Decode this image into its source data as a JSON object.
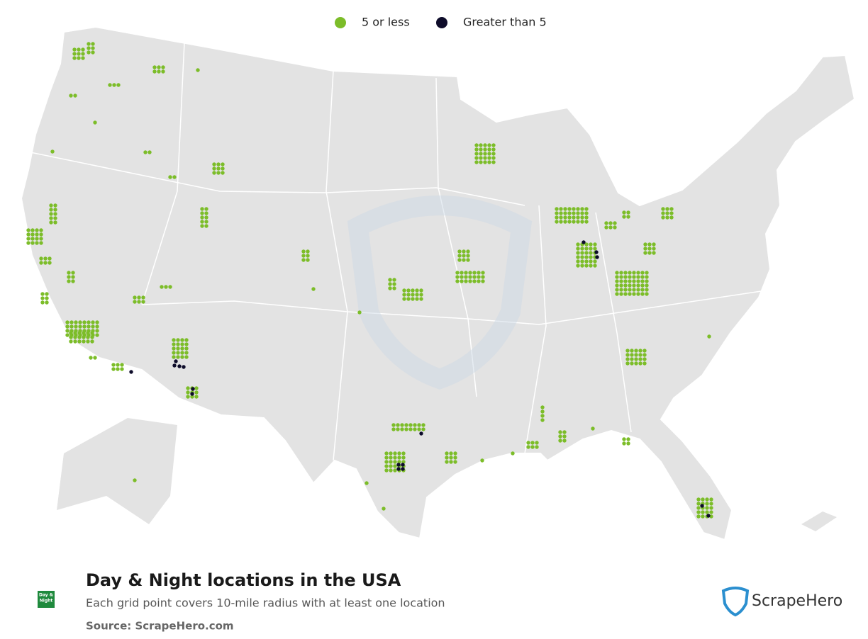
{
  "legend": [
    {
      "label": "5 or less",
      "color": "#7cbd29"
    },
    {
      "label": "Greater than 5",
      "color": "#0e0c2a"
    }
  ],
  "title": "Day & Night locations in the USA",
  "subtitle": "Each grid point covers 10-mile radius with at least one location",
  "source": "Source: ScrapeHero.com",
  "brand_logo": [
    "Day &",
    "Night"
  ],
  "brand": "ScrapeHero"
}
